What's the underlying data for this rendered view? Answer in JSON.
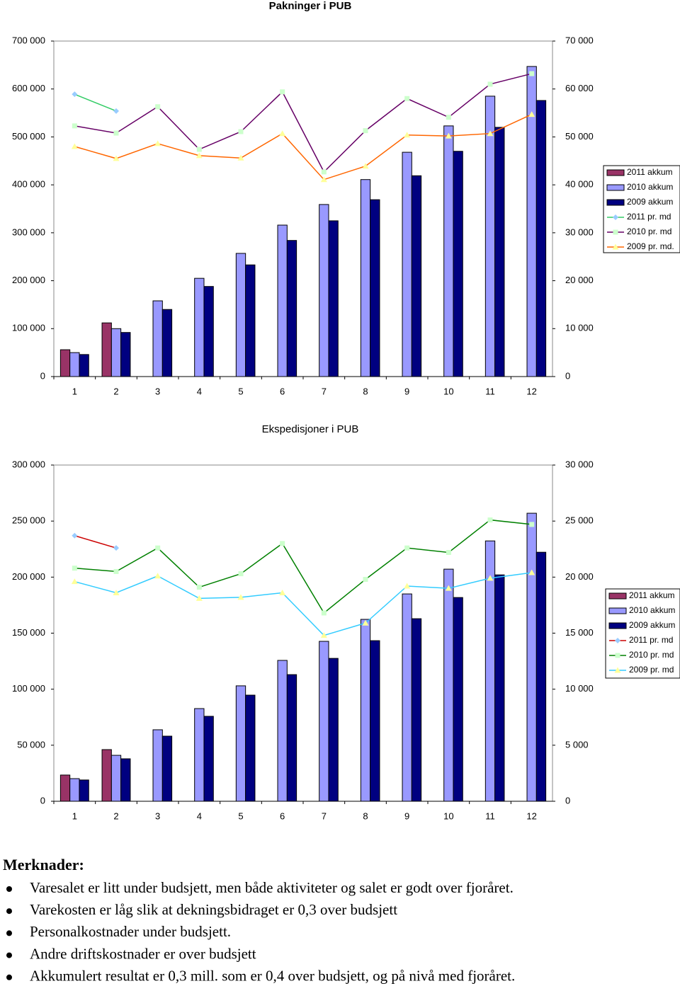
{
  "chart_data": [
    {
      "type": "bar",
      "title": "Pakninger i PUB",
      "categories": [
        "1",
        "2",
        "3",
        "4",
        "5",
        "6",
        "7",
        "8",
        "9",
        "10",
        "11",
        "12"
      ],
      "ylim": [
        0,
        700000
      ],
      "yticks": [
        0,
        {
          "value": 100000,
          "label": "100 000"
        },
        {
          "value": 200000,
          "label": "200 000"
        },
        {
          "value": 300000,
          "label": "300 000"
        },
        {
          "value": 400000,
          "label": "400 000"
        },
        {
          "value": 500000,
          "label": "500 000"
        },
        {
          "value": 600000,
          "label": "600 000"
        },
        {
          "value": 700000,
          "label": "700 000"
        }
      ],
      "y2lim": [
        0,
        70000
      ],
      "y2ticks": [
        0,
        {
          "value": 10000,
          "label": "10 000"
        },
        {
          "value": 20000,
          "label": "20 000"
        },
        {
          "value": 30000,
          "label": "30 000"
        },
        {
          "value": 40000,
          "label": "40 000"
        },
        {
          "value": 50000,
          "label": "50 000"
        },
        {
          "value": 60000,
          "label": "60 000"
        },
        {
          "value": 70000,
          "label": "70 000"
        }
      ],
      "legend": "right",
      "series": [
        {
          "name": "2011 akkum",
          "type": "bar",
          "color": "#993366",
          "values": [
            56000,
            112000,
            null,
            null,
            null,
            null,
            null,
            null,
            null,
            null,
            null,
            null
          ]
        },
        {
          "name": "2010 akkum",
          "type": "bar",
          "color": "#9999ff",
          "values": [
            50000,
            100000,
            158000,
            205000,
            257000,
            316000,
            359000,
            411000,
            468000,
            523000,
            585000,
            647000
          ]
        },
        {
          "name": "2009 akkum",
          "type": "bar",
          "color": "#000080",
          "values": [
            46000,
            92000,
            140000,
            188000,
            233000,
            284000,
            325000,
            369000,
            419000,
            470000,
            520000,
            576000
          ]
        },
        {
          "name": "2011 pr. md",
          "type": "line",
          "axis": "y2",
          "color": "#33cc66",
          "marker": "diamond",
          "marker_color": "#99ccff",
          "values": [
            58900,
            55400,
            null,
            null,
            null,
            null,
            null,
            null,
            null,
            null,
            null,
            null
          ]
        },
        {
          "name": "2010 pr. md",
          "type": "line",
          "axis": "y2",
          "color": "#660066",
          "marker": "square",
          "marker_color": "#ccffcc",
          "values": [
            52300,
            50800,
            56300,
            47400,
            51100,
            59400,
            42700,
            51300,
            58000,
            54100,
            61000,
            63200
          ]
        },
        {
          "name": "2009 pr. md.",
          "type": "line",
          "axis": "y2",
          "color": "#ff6600",
          "marker": "triangle",
          "marker_color": "#ffff99",
          "values": [
            48000,
            45500,
            48600,
            46100,
            45600,
            50700,
            41100,
            43900,
            50400,
            50200,
            50700,
            54700
          ]
        }
      ]
    },
    {
      "type": "bar",
      "title": "Ekspedisjoner i PUB",
      "categories": [
        "1",
        "2",
        "3",
        "4",
        "5",
        "6",
        "7",
        "8",
        "9",
        "10",
        "11",
        "12"
      ],
      "ylim": [
        0,
        300000
      ],
      "yticks": [
        0,
        {
          "value": 50000,
          "label": "50 000"
        },
        {
          "value": 100000,
          "label": "100 000"
        },
        {
          "value": 150000,
          "label": "150 000"
        },
        {
          "value": 200000,
          "label": "200 000"
        },
        {
          "value": 250000,
          "label": "250 000"
        },
        {
          "value": 300000,
          "label": "300 000"
        }
      ],
      "y2lim": [
        0,
        30000
      ],
      "y2ticks": [
        0,
        {
          "value": 5000,
          "label": "5 000"
        },
        {
          "value": 10000,
          "label": "10 000"
        },
        {
          "value": 15000,
          "label": "15 000"
        },
        {
          "value": 20000,
          "label": "20 000"
        },
        {
          "value": 25000,
          "label": "25 000"
        },
        {
          "value": 30000,
          "label": "30 000"
        }
      ],
      "legend": "right",
      "series": [
        {
          "name": "2011 akkum",
          "type": "bar",
          "color": "#993366",
          "values": [
            23400,
            46100,
            null,
            null,
            null,
            null,
            null,
            null,
            null,
            null,
            null,
            null
          ]
        },
        {
          "name": "2010 akkum",
          "type": "bar",
          "color": "#9999ff",
          "values": [
            20200,
            41000,
            63800,
            82700,
            103000,
            125700,
            142700,
            162300,
            185000,
            207100,
            232300,
            257000
          ]
        },
        {
          "name": "2009 akkum",
          "type": "bar",
          "color": "#000080",
          "values": [
            19000,
            37900,
            58100,
            75800,
            94700,
            113000,
            127500,
            143300,
            162900,
            181800,
            202000,
            222200
          ]
        },
        {
          "name": "2011 pr. md",
          "type": "line",
          "axis": "y2",
          "color": "#cc0000",
          "marker": "diamond",
          "marker_color": "#99ccff",
          "values": [
            23700,
            22600,
            null,
            null,
            null,
            null,
            null,
            null,
            null,
            null,
            null,
            null
          ]
        },
        {
          "name": "2010 pr. md",
          "type": "line",
          "axis": "y2",
          "color": "#008000",
          "marker": "square",
          "marker_color": "#ccffcc",
          "values": [
            20800,
            20500,
            22600,
            19100,
            20300,
            23000,
            16800,
            19800,
            22600,
            22200,
            25100,
            24700
          ]
        },
        {
          "name": "2009 pr. md",
          "type": "line",
          "axis": "y2",
          "color": "#33ccff",
          "marker": "triangle",
          "marker_color": "#ffff99",
          "values": [
            19600,
            18600,
            20100,
            18100,
            18200,
            18600,
            14800,
            15900,
            19200,
            19000,
            19900,
            20400
          ]
        }
      ]
    }
  ],
  "notes": {
    "title": "Merknader:",
    "items": [
      "Varesalet er litt under budsjett, men både aktiviteter og salet er godt over fjoråret.",
      "Varekosten er låg slik at dekningsbidraget er 0,3 over budsjett",
      "Personalkostnader under budsjett.",
      "Andre driftskostnader er over budsjett",
      "Akkumulert resultat er 0,3 mill. som er 0,4 over budsjett, og på nivå med fjoråret."
    ]
  }
}
